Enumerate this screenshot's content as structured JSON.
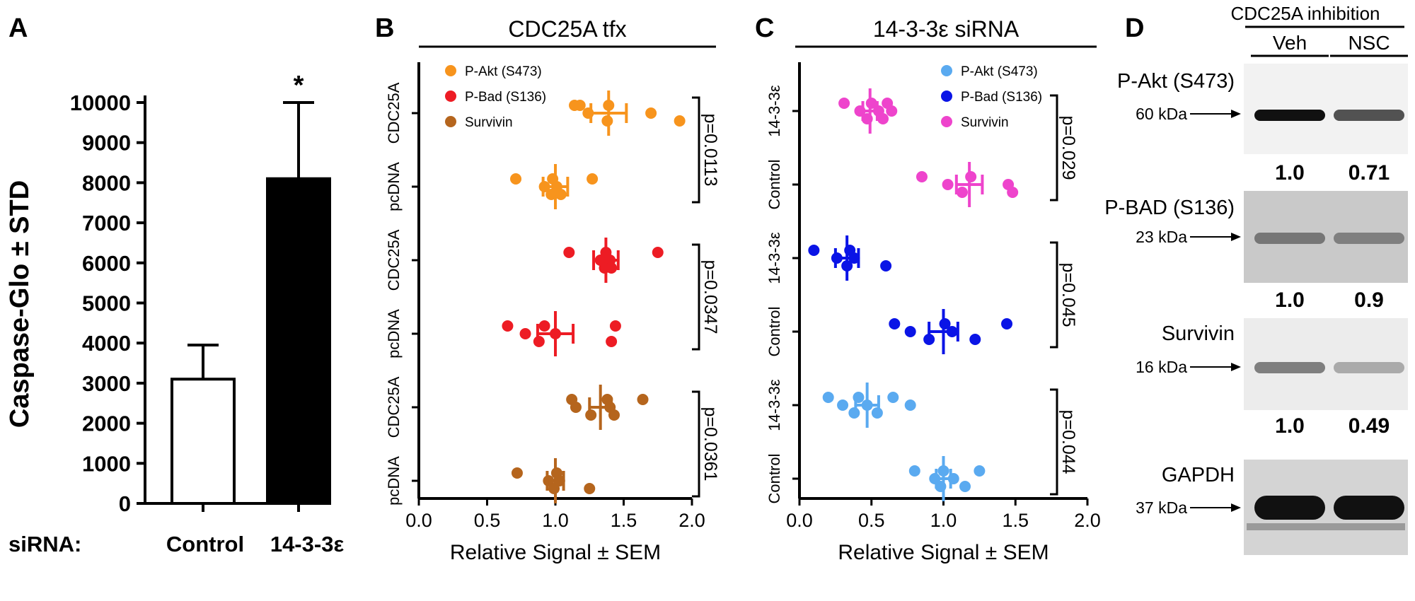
{
  "panels": {
    "a": {
      "letter": "A"
    },
    "b": {
      "letter": "B"
    },
    "c": {
      "letter": "C"
    },
    "d": {
      "letter": "D"
    }
  },
  "chart_data": [
    {
      "id": "a",
      "type": "bar",
      "categories": [
        "Control",
        "14-3-3ε"
      ],
      "values": [
        3100,
        8100
      ],
      "errors": [
        850,
        1900
      ],
      "error_type": "STD",
      "ylabel": "Caspase-Glo ± STD",
      "ylim": [
        0,
        10000
      ],
      "yticks": [
        "0",
        "1000",
        "2000",
        "3000",
        "4000",
        "5000",
        "6000",
        "7000",
        "8000",
        "9000",
        "10000"
      ],
      "xlabel_prefix": "siRNA:",
      "annotation": "*",
      "bar_colors": [
        "#ffffff",
        "#000000"
      ]
    },
    {
      "id": "b",
      "type": "scatter",
      "title": "CDC25A tfx",
      "xlabel": "Relative Signal ± SEM",
      "xlim": [
        0,
        2
      ],
      "xticks": [
        "0.0",
        "0.5",
        "1.0",
        "1.5",
        "2.0"
      ],
      "rows": [
        {
          "label": "CDC25A",
          "series": 0,
          "mean": 1.39,
          "sem": 0.13,
          "points": [
            1.14,
            1.24,
            1.38,
            1.39,
            1.7,
            1.91,
            1.18
          ]
        },
        {
          "label": "pcDNA",
          "series": 0,
          "mean": 1.0,
          "sem": 0.09,
          "points": [
            0.71,
            0.92,
            0.97,
            0.98,
            1.01,
            1.04,
            1.27
          ]
        },
        {
          "label": "CDC25A",
          "series": 1,
          "mean": 1.37,
          "sem": 0.09,
          "points": [
            1.1,
            1.33,
            1.36,
            1.37,
            1.4,
            1.41,
            1.75
          ]
        },
        {
          "label": "pcDNA",
          "series": 1,
          "mean": 1.0,
          "sem": 0.13,
          "points": [
            0.65,
            0.78,
            0.88,
            0.92,
            1.0,
            1.41,
            1.44
          ]
        },
        {
          "label": "CDC25A",
          "series": 2,
          "mean": 1.33,
          "sem": 0.08,
          "points": [
            1.12,
            1.15,
            1.26,
            1.38,
            1.4,
            1.43,
            1.64
          ]
        },
        {
          "label": "pcDNA",
          "series": 2,
          "mean": 1.0,
          "sem": 0.06,
          "points": [
            0.72,
            0.95,
            0.99,
            1.01,
            1.03,
            1.25
          ]
        }
      ],
      "series": [
        {
          "name": "P-Akt (S473)",
          "color": "#f7941d"
        },
        {
          "name": "P-Bad (S136)",
          "color": "#ed1c24"
        },
        {
          "name": "Survivin",
          "color": "#b5651d"
        }
      ],
      "pvalues": [
        "p=0.0113",
        "p=0.0347",
        "p=0.0361"
      ],
      "legend": "top-left"
    },
    {
      "id": "c",
      "type": "scatter",
      "title": "14-3-3ε siRNA",
      "xlabel": "Relative Signal ± SEM",
      "xlim": [
        0,
        2
      ],
      "xticks": [
        "0.0",
        "0.5",
        "1.0",
        "1.5",
        "2.0"
      ],
      "rows": [
        {
          "label": "14-3-3ε",
          "series": 2,
          "mean": 0.49,
          "sem": 0.05,
          "points": [
            0.31,
            0.42,
            0.47,
            0.5,
            0.55,
            0.58,
            0.61,
            0.64
          ]
        },
        {
          "label": "Control",
          "series": 2,
          "mean": 1.18,
          "sem": 0.09,
          "points": [
            0.85,
            1.03,
            1.13,
            1.19,
            1.45,
            1.48
          ]
        },
        {
          "label": "14-3-3ε",
          "series": 1,
          "mean": 0.33,
          "sem": 0.08,
          "points": [
            0.1,
            0.26,
            0.33,
            0.35,
            0.38,
            0.6
          ]
        },
        {
          "label": "Control",
          "series": 1,
          "mean": 1.0,
          "sem": 0.1,
          "points": [
            0.66,
            0.77,
            0.9,
            1.01,
            1.06,
            1.22,
            1.44
          ]
        },
        {
          "label": "14-3-3ε",
          "series": 0,
          "mean": 0.47,
          "sem": 0.08,
          "points": [
            0.2,
            0.3,
            0.38,
            0.41,
            0.47,
            0.54,
            0.65,
            0.77
          ]
        },
        {
          "label": "Control",
          "series": 0,
          "mean": 1.0,
          "sem": 0.05,
          "points": [
            0.8,
            0.94,
            0.98,
            1.0,
            1.07,
            1.15,
            1.25
          ]
        }
      ],
      "series": [
        {
          "name": "P-Akt (S473)",
          "color": "#5aaaf0"
        },
        {
          "name": "P-Bad (S136)",
          "color": "#0a14e6"
        },
        {
          "name": "Survivin",
          "color": "#ee44cc"
        }
      ],
      "pvalues": [
        "p=0.029",
        "p=0.045",
        "p=0.044"
      ],
      "legend": "top-right"
    }
  ],
  "western": {
    "title": "CDC25A inhibition",
    "lanes": [
      "Veh",
      "NSC"
    ],
    "blots": [
      {
        "name": "P-Akt (S473)",
        "mw": "60 kDa",
        "quant": [
          "1.0",
          "0.71"
        ],
        "intensity": [
          1.0,
          0.71
        ],
        "bg": "#f2f2f2"
      },
      {
        "name": "P-BAD (S136)",
        "mw": "23 kDa",
        "quant": [
          "1.0",
          "0.9"
        ],
        "intensity": [
          0.45,
          0.4
        ],
        "bg": "#c9c9c9"
      },
      {
        "name": "Survivin",
        "mw": "16 kDa",
        "quant": [
          "1.0",
          "0.49"
        ],
        "intensity": [
          0.5,
          0.3
        ],
        "bg": "#ececec"
      },
      {
        "name": "GAPDH",
        "mw": "37 kDa",
        "quant": [
          "",
          ""
        ],
        "intensity": [
          1.0,
          1.0
        ],
        "bg": "#d4d4d4"
      }
    ]
  }
}
